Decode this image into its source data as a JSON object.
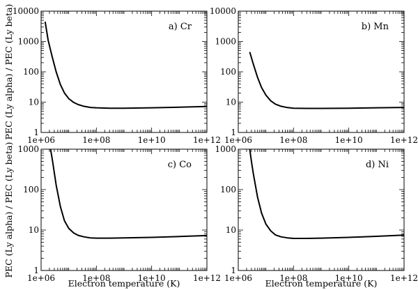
{
  "figure": {
    "ylabel": "PEC (Ly alpha) / PEC (Ly beta)",
    "xlabel": "Electron temperature (K)"
  },
  "chart_data": [
    {
      "type": "line",
      "panel_label": "a)  Cr",
      "xlabel": "",
      "ylabel": "PEC (Ly alpha) / PEC (Ly beta)",
      "xscale": "log",
      "yscale": "log",
      "xlim": [
        1000000.0,
        1000000000000.0
      ],
      "ylim": [
        1,
        10000
      ],
      "x_ticks": [
        "1e+06",
        "1e+08",
        "1e+10",
        "1e+12"
      ],
      "y_ticks": [
        "1",
        "10",
        "100",
        "1000",
        "10000"
      ],
      "series": [
        {
          "x": [
            1400000.0,
            1800000.0,
            2500000.0,
            3500000.0,
            5000000.0,
            7000000.0,
            10000000.0,
            15000000.0,
            22000000.0,
            35000000.0,
            60000000.0,
            100000000.0,
            300000000.0,
            1000000000.0,
            10000000000.0,
            100000000000.0,
            1000000000000.0
          ],
          "y": [
            4500,
            1100,
            320,
            100,
            38,
            20,
            13,
            9.8,
            8.3,
            7.3,
            6.7,
            6.5,
            6.3,
            6.3,
            6.5,
            6.8,
            7.2
          ]
        }
      ]
    },
    {
      "type": "line",
      "panel_label": "b) Mn",
      "xlabel": "",
      "ylabel": "",
      "xscale": "log",
      "yscale": "log",
      "xlim": [
        1000000.0,
        1000000000000.0
      ],
      "ylim": [
        1,
        10000
      ],
      "x_ticks": [
        "1e+06",
        "1e+08",
        "1e+10",
        "1e+12"
      ],
      "y_ticks": [
        "1",
        "10",
        "100",
        "1000",
        "10000"
      ],
      "series": [
        {
          "x": [
            2600000.0,
            3500000.0,
            5000000.0,
            7000000.0,
            10000000.0,
            15000000.0,
            22000000.0,
            35000000.0,
            60000000.0,
            100000000.0,
            300000000.0,
            1000000000.0,
            10000000000.0,
            100000000000.0,
            1000000000000.0
          ],
          "y": [
            450,
            180,
            65,
            30,
            17,
            11,
            8.6,
            7.3,
            6.6,
            6.3,
            6.2,
            6.2,
            6.3,
            6.5,
            6.7
          ]
        }
      ]
    },
    {
      "type": "line",
      "panel_label": "c) Co",
      "xlabel": "Electron temperature (K)",
      "ylabel": "PEC (Ly alpha) / PEC (Ly beta)",
      "xscale": "log",
      "yscale": "log",
      "xlim": [
        1000000.0,
        1000000000000.0
      ],
      "ylim": [
        1,
        1000
      ],
      "x_ticks": [
        "1e+06",
        "1e+08",
        "1e+10",
        "1e+12"
      ],
      "y_ticks": [
        "1",
        "10",
        "100",
        "1000"
      ],
      "series": [
        {
          "x": [
            2200000.0,
            2600000.0,
            3500000.0,
            5000000.0,
            7000000.0,
            10000000.0,
            15000000.0,
            22000000.0,
            35000000.0,
            60000000.0,
            100000000.0,
            300000000.0,
            1000000000.0,
            10000000000.0,
            100000000000.0,
            1000000000000.0
          ],
          "y": [
            1000,
            500,
            130,
            38,
            17,
            11,
            8.5,
            7.4,
            6.8,
            6.4,
            6.3,
            6.3,
            6.4,
            6.6,
            6.9,
            7.3
          ]
        }
      ]
    },
    {
      "type": "line",
      "panel_label": "d) Ni",
      "xlabel": "Electron temperature (K)",
      "ylabel": "",
      "xscale": "log",
      "yscale": "log",
      "xlim": [
        1000000.0,
        1000000000000.0
      ],
      "ylim": [
        1,
        1000
      ],
      "x_ticks": [
        "1e+06",
        "1e+08",
        "1e+10",
        "1e+12"
      ],
      "y_ticks": [
        "1",
        "10",
        "100",
        "1000"
      ],
      "series": [
        {
          "x": [
            2600000.0,
            3000000.0,
            3500000.0,
            5000000.0,
            7000000.0,
            10000000.0,
            15000000.0,
            22000000.0,
            35000000.0,
            60000000.0,
            100000000.0,
            300000000.0,
            1000000000.0,
            10000000000.0,
            100000000000.0,
            1000000000000.0
          ],
          "y": [
            1000,
            500,
            250,
            65,
            26,
            14,
            9.5,
            7.6,
            6.8,
            6.4,
            6.2,
            6.2,
            6.3,
            6.6,
            7.0,
            7.5
          ]
        }
      ]
    }
  ]
}
